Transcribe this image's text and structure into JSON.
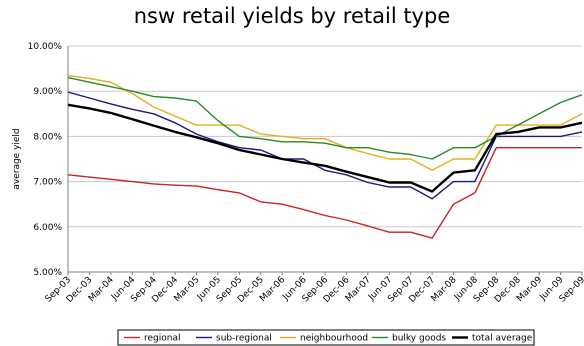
{
  "chart_data": {
    "type": "line",
    "title": "nsw retail yields by retail type",
    "xlabel": "",
    "ylabel": "average yield",
    "ylim": [
      5.0,
      10.0
    ],
    "y_ticks": [
      "5.00%",
      "6.00%",
      "7.00%",
      "8.00%",
      "9.00%",
      "10.00%"
    ],
    "y_tick_values": [
      5,
      6,
      7,
      8,
      9,
      10
    ],
    "categories": [
      "Sep-03",
      "Dec-03",
      "Mar-04",
      "Jun-04",
      "Sep-04",
      "Dec-04",
      "Mar-05",
      "Jun-05",
      "Sep-05",
      "Dec-05",
      "Mar-06",
      "Jun-06",
      "Sep-06",
      "Dec-06",
      "Mar-07",
      "Jun-07",
      "Sep-07",
      "Dec-07",
      "Mar-08",
      "Jun-08",
      "Sep-08",
      "Dec-08",
      "Mar-09",
      "Jun-09",
      "Sep-09"
    ],
    "grid": true,
    "legend_position": "bottom",
    "series": [
      {
        "name": "regional",
        "color": "#cc2222",
        "values": [
          7.15,
          7.1,
          7.05,
          7.0,
          6.95,
          6.92,
          6.9,
          6.82,
          6.75,
          6.55,
          6.5,
          6.38,
          6.25,
          6.15,
          6.02,
          5.88,
          5.88,
          5.75,
          6.5,
          6.75,
          7.75,
          7.75,
          7.75,
          7.75,
          7.75
        ]
      },
      {
        "name": "sub-regional",
        "color": "#1a1a80",
        "values": [
          8.98,
          8.85,
          8.72,
          8.6,
          8.5,
          8.3,
          8.05,
          7.88,
          7.75,
          7.7,
          7.5,
          7.5,
          7.25,
          7.15,
          6.98,
          6.88,
          6.88,
          6.62,
          7.0,
          7.0,
          8.0,
          8.0,
          8.0,
          8.0,
          8.1
        ]
      },
      {
        "name": "neighbourhood",
        "color": "#e0b020",
        "values": [
          9.35,
          9.28,
          9.2,
          8.95,
          8.65,
          8.45,
          8.25,
          8.25,
          8.25,
          8.05,
          8.0,
          7.95,
          7.95,
          7.75,
          7.62,
          7.5,
          7.5,
          7.25,
          7.5,
          7.5,
          8.25,
          8.25,
          8.25,
          8.25,
          8.5
        ]
      },
      {
        "name": "bulky goods",
        "color": "#2a8a2a",
        "values": [
          9.3,
          9.2,
          9.1,
          9.0,
          8.88,
          8.85,
          8.78,
          8.35,
          8.0,
          7.95,
          7.88,
          7.88,
          7.85,
          7.75,
          7.75,
          7.65,
          7.6,
          7.5,
          7.75,
          7.75,
          8.0,
          8.25,
          8.5,
          8.75,
          8.92
        ]
      },
      {
        "name": "total average",
        "color": "#000000",
        "values": [
          8.7,
          8.62,
          8.52,
          8.38,
          8.24,
          8.1,
          7.98,
          7.85,
          7.7,
          7.6,
          7.5,
          7.42,
          7.35,
          7.22,
          7.1,
          6.98,
          6.98,
          6.78,
          7.2,
          7.25,
          8.05,
          8.1,
          8.2,
          8.2,
          8.3
        ]
      }
    ]
  }
}
